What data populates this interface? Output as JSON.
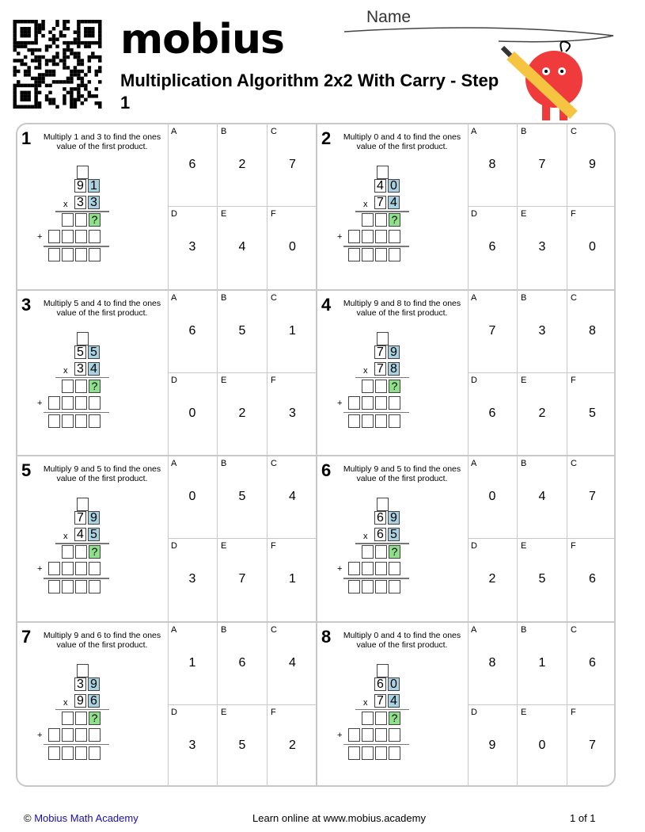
{
  "header": {
    "logo": "mobius",
    "title": "Multiplication Algorithm 2x2 With Carry - Step 1",
    "name_label": "Name"
  },
  "problems": [
    {
      "n": "1",
      "instr": "Multiply 1 and 3 to find the ones value of the first product.",
      "top": [
        "9",
        "1"
      ],
      "bottom": [
        "3",
        "3"
      ],
      "answers": [
        [
          "A",
          "6"
        ],
        [
          "B",
          "2"
        ],
        [
          "C",
          "7"
        ],
        [
          "D",
          "3"
        ],
        [
          "E",
          "4"
        ],
        [
          "F",
          "0"
        ]
      ]
    },
    {
      "n": "2",
      "instr": "Multiply 0 and 4 to find the ones value of the first product.",
      "top": [
        "4",
        "0"
      ],
      "bottom": [
        "7",
        "4"
      ],
      "answers": [
        [
          "A",
          "8"
        ],
        [
          "B",
          "7"
        ],
        [
          "C",
          "9"
        ],
        [
          "D",
          "6"
        ],
        [
          "E",
          "3"
        ],
        [
          "F",
          "0"
        ]
      ]
    },
    {
      "n": "3",
      "instr": "Multiply 5 and 4 to find the ones value of the first product.",
      "top": [
        "5",
        "5"
      ],
      "bottom": [
        "3",
        "4"
      ],
      "answers": [
        [
          "A",
          "6"
        ],
        [
          "B",
          "5"
        ],
        [
          "C",
          "1"
        ],
        [
          "D",
          "0"
        ],
        [
          "E",
          "2"
        ],
        [
          "F",
          "3"
        ]
      ]
    },
    {
      "n": "4",
      "instr": "Multiply 9 and 8 to find the ones value of the first product.",
      "top": [
        "7",
        "9"
      ],
      "bottom": [
        "7",
        "8"
      ],
      "answers": [
        [
          "A",
          "7"
        ],
        [
          "B",
          "3"
        ],
        [
          "C",
          "8"
        ],
        [
          "D",
          "6"
        ],
        [
          "E",
          "2"
        ],
        [
          "F",
          "5"
        ]
      ]
    },
    {
      "n": "5",
      "instr": "Multiply 9 and 5 to find the ones value of the first product.",
      "top": [
        "7",
        "9"
      ],
      "bottom": [
        "4",
        "5"
      ],
      "answers": [
        [
          "A",
          "0"
        ],
        [
          "B",
          "5"
        ],
        [
          "C",
          "4"
        ],
        [
          "D",
          "3"
        ],
        [
          "E",
          "7"
        ],
        [
          "F",
          "1"
        ]
      ]
    },
    {
      "n": "6",
      "instr": "Multiply 9 and 5 to find the ones value of the first product.",
      "top": [
        "6",
        "9"
      ],
      "bottom": [
        "6",
        "5"
      ],
      "answers": [
        [
          "A",
          "0"
        ],
        [
          "B",
          "4"
        ],
        [
          "C",
          "7"
        ],
        [
          "D",
          "2"
        ],
        [
          "E",
          "5"
        ],
        [
          "F",
          "6"
        ]
      ]
    },
    {
      "n": "7",
      "instr": "Multiply 9 and 6 to find the ones value of the first product.",
      "top": [
        "3",
        "9"
      ],
      "bottom": [
        "9",
        "6"
      ],
      "answers": [
        [
          "A",
          "1"
        ],
        [
          "B",
          "6"
        ],
        [
          "C",
          "4"
        ],
        [
          "D",
          "3"
        ],
        [
          "E",
          "5"
        ],
        [
          "F",
          "2"
        ]
      ]
    },
    {
      "n": "8",
      "instr": "Multiply 0 and 4 to find the ones value of the first product.",
      "top": [
        "6",
        "0"
      ],
      "bottom": [
        "7",
        "4"
      ],
      "answers": [
        [
          "A",
          "8"
        ],
        [
          "B",
          "1"
        ],
        [
          "C",
          "6"
        ],
        [
          "D",
          "9"
        ],
        [
          "E",
          "0"
        ],
        [
          "F",
          "7"
        ]
      ]
    }
  ],
  "symbols": {
    "times": "x",
    "plus": "+",
    "unknown": "?"
  },
  "colors": {
    "highlight": "#a9d3e2",
    "unknown": "#8fe08a",
    "mascot": "#ef3b3b"
  },
  "footer": {
    "copyright": "©",
    "link": "Mobius Math Academy",
    "center": "Learn online at www.mobius.academy",
    "page": "1 of 1"
  }
}
